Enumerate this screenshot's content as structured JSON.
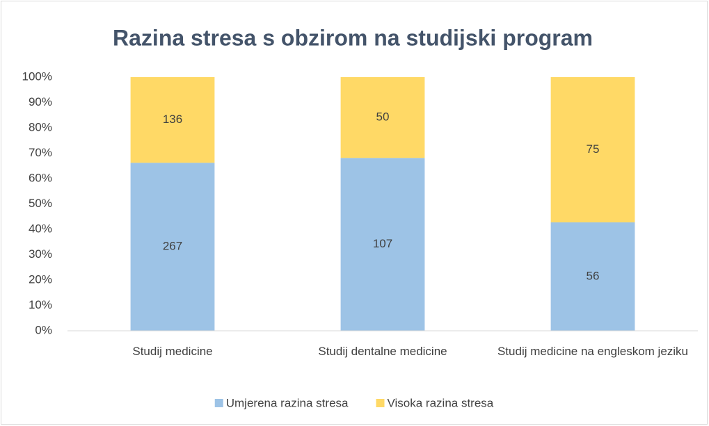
{
  "chart_data": {
    "type": "bar",
    "stacking": "percent",
    "title": "Razina stresa s obzirom na studijski program",
    "categories": [
      "Studij medicine",
      "Studij dentalne medicine",
      "Studij medicine na engleskom jeziku"
    ],
    "series": [
      {
        "name": "Umjerena razina stresa",
        "color": "#9dc3e6",
        "values": [
          267,
          107,
          56
        ]
      },
      {
        "name": "Visoka razina stresa",
        "color": "#ffd966",
        "values": [
          136,
          50,
          75
        ]
      }
    ],
    "ylim": [
      0,
      100
    ],
    "yticks": [
      {
        "value": 0,
        "label": "0%"
      },
      {
        "value": 10,
        "label": "10%"
      },
      {
        "value": 20,
        "label": "20%"
      },
      {
        "value": 30,
        "label": "30%"
      },
      {
        "value": 40,
        "label": "40%"
      },
      {
        "value": 50,
        "label": "50%"
      },
      {
        "value": 60,
        "label": "60%"
      },
      {
        "value": 70,
        "label": "70%"
      },
      {
        "value": 80,
        "label": "80%"
      },
      {
        "value": 90,
        "label": "90%"
      },
      {
        "value": 100,
        "label": "100%"
      }
    ],
    "grid": false,
    "legend": "bottom"
  }
}
